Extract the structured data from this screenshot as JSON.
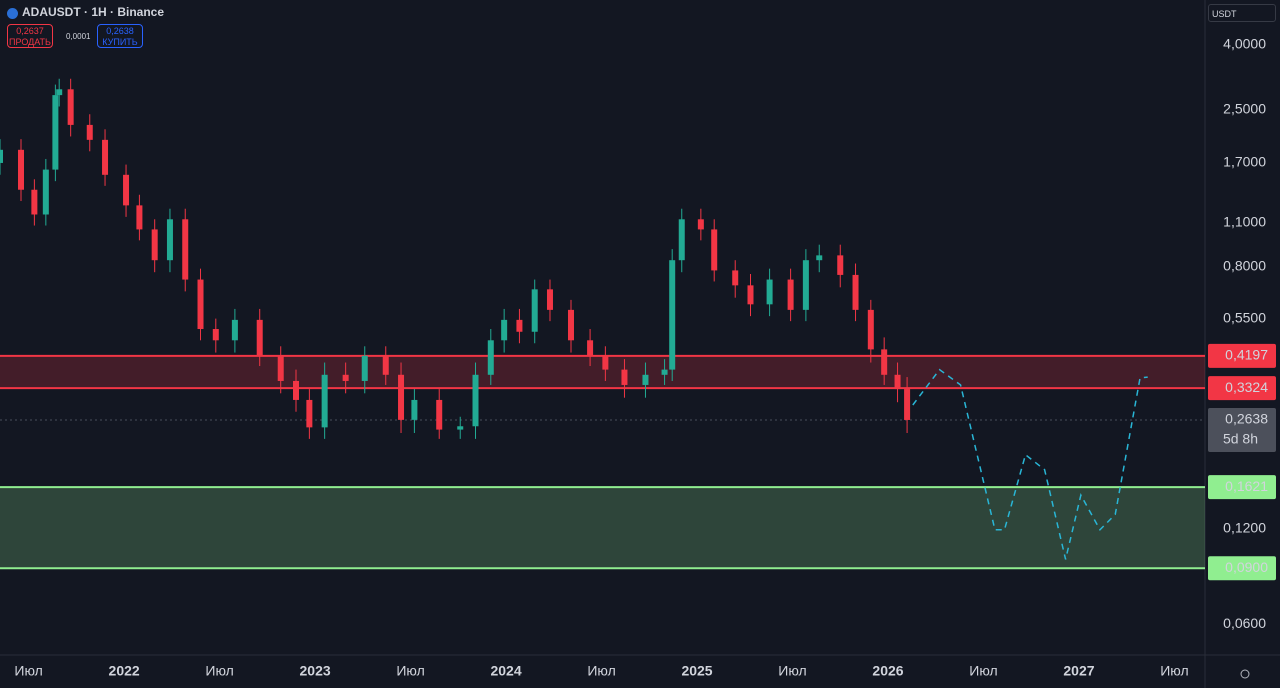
{
  "header": {
    "symbol": "ADAUSDT · 1H · Binance",
    "sell_price": "0,2637",
    "sell_label": "ПРОДАТЬ",
    "spread": "0,0001",
    "buy_price": "0,2638",
    "buy_label": "КУПИТЬ",
    "currency": "USDT"
  },
  "chart_data": {
    "type": "candlestick",
    "log_scale": true,
    "grid": false,
    "up_color": "#22ab94",
    "down_color": "#f23645",
    "x": [
      2021.35,
      2021.46,
      2021.53,
      2021.59,
      2021.64,
      2021.66,
      2021.72,
      2021.82,
      2021.9,
      2022.01,
      2022.08,
      2022.16,
      2022.24,
      2022.32,
      2022.4,
      2022.48,
      2022.58,
      2022.71,
      2022.82,
      2022.9,
      2022.97,
      2023.05,
      2023.16,
      2023.26,
      2023.37,
      2023.45,
      2023.52,
      2023.65,
      2023.76,
      2023.84,
      2023.92,
      2023.99,
      2024.07,
      2024.15,
      2024.23,
      2024.34,
      2024.44,
      2024.52,
      2024.62,
      2024.73,
      2024.83,
      2024.87,
      2024.92,
      2025.02,
      2025.09,
      2025.2,
      2025.28,
      2025.38,
      2025.49,
      2025.57,
      2025.64,
      2025.75,
      2025.83,
      2025.91,
      2025.98,
      2026.05,
      2026.1
    ],
    "open": [
      1.7,
      1.87,
      1.4,
      1.17,
      1.62,
      2.78,
      2.9,
      2.24,
      2.01,
      1.56,
      1.25,
      1.05,
      0.84,
      1.13,
      0.73,
      0.51,
      0.47,
      0.545,
      0.42,
      0.35,
      0.305,
      0.25,
      0.366,
      0.35,
      0.42,
      0.366,
      0.264,
      0.305,
      0.246,
      0.252,
      0.366,
      0.47,
      0.545,
      0.5,
      0.68,
      0.586,
      0.47,
      0.42,
      0.38,
      0.34,
      0.366,
      0.38,
      0.84,
      1.13,
      1.05,
      0.78,
      0.7,
      0.61,
      0.73,
      0.586,
      0.84,
      0.87,
      0.755,
      0.586,
      0.44,
      0.366,
      0.33
    ],
    "high": [
      2.02,
      2.02,
      1.51,
      1.75,
      3.0,
      3.13,
      3.13,
      2.42,
      2.17,
      1.68,
      1.35,
      1.13,
      1.22,
      1.22,
      0.79,
      0.55,
      0.59,
      0.59,
      0.45,
      0.38,
      0.33,
      0.4,
      0.4,
      0.45,
      0.45,
      0.4,
      0.33,
      0.33,
      0.27,
      0.4,
      0.51,
      0.59,
      0.59,
      0.73,
      0.73,
      0.63,
      0.51,
      0.45,
      0.41,
      0.4,
      0.41,
      0.91,
      1.22,
      1.22,
      1.13,
      0.84,
      0.76,
      0.79,
      0.79,
      0.91,
      0.94,
      0.94,
      0.82,
      0.63,
      0.48,
      0.4,
      0.36
    ],
    "low": [
      1.56,
      1.29,
      1.08,
      1.08,
      1.49,
      2.56,
      2.06,
      1.85,
      1.44,
      1.15,
      0.97,
      0.77,
      0.77,
      0.67,
      0.47,
      0.43,
      0.43,
      0.39,
      0.32,
      0.28,
      0.23,
      0.23,
      0.32,
      0.32,
      0.34,
      0.24,
      0.24,
      0.23,
      0.23,
      0.23,
      0.34,
      0.43,
      0.46,
      0.46,
      0.54,
      0.43,
      0.39,
      0.35,
      0.31,
      0.31,
      0.34,
      0.35,
      0.77,
      0.97,
      0.72,
      0.64,
      0.56,
      0.56,
      0.54,
      0.54,
      0.77,
      0.69,
      0.54,
      0.4,
      0.34,
      0.3,
      0.24
    ],
    "close": [
      1.87,
      1.4,
      1.17,
      1.62,
      2.78,
      2.9,
      2.24,
      2.01,
      1.56,
      1.25,
      1.05,
      0.84,
      1.13,
      0.73,
      0.51,
      0.47,
      0.545,
      0.42,
      0.35,
      0.305,
      0.25,
      0.366,
      0.35,
      0.42,
      0.366,
      0.264,
      0.305,
      0.246,
      0.252,
      0.366,
      0.47,
      0.545,
      0.5,
      0.68,
      0.586,
      0.47,
      0.42,
      0.38,
      0.34,
      0.366,
      0.38,
      0.84,
      1.13,
      1.05,
      0.78,
      0.7,
      0.61,
      0.73,
      0.586,
      0.84,
      0.87,
      0.755,
      0.586,
      0.44,
      0.366,
      0.33,
      0.2638
    ],
    "xlim": [
      2021.35,
      2027.66
    ],
    "ylim": [
      0.048,
      5.54
    ],
    "xticks": [
      {
        "value": 2021.5,
        "label": "Июл"
      },
      2022,
      {
        "value": 2022.5,
        "label": "Июл"
      },
      2023,
      {
        "value": 2023.5,
        "label": "Июл"
      },
      2024,
      {
        "value": 2024.5,
        "label": "Июл"
      },
      2025,
      {
        "value": 2025.5,
        "label": "Июл"
      },
      2026,
      {
        "value": 2026.5,
        "label": "Июл"
      },
      2027,
      {
        "value": 2027.5,
        "label": "Июл"
      }
    ],
    "yticks": [
      {
        "value": 4,
        "label": "4,0000"
      },
      {
        "value": 2.5,
        "label": "2,5000"
      },
      {
        "value": 1.7,
        "label": "1,7000"
      },
      {
        "value": 1.1,
        "label": "1,1000"
      },
      {
        "value": 0.8,
        "label": "0,8000"
      },
      {
        "value": 0.55,
        "label": "0,5500"
      },
      {
        "value": 0.12,
        "label": "0,1200"
      },
      {
        "value": 0.06,
        "label": "0,0600"
      }
    ],
    "resistance_zone": {
      "top": {
        "value": 0.4197,
        "label": "0,4197"
      },
      "bottom": {
        "value": 0.3324,
        "label": "0,3324"
      },
      "color": "#f23645"
    },
    "support_zone": {
      "top": {
        "value": 0.1621,
        "label": "0,1621"
      },
      "bottom": {
        "value": 0.09,
        "label": "0,0900"
      },
      "color": "#90ee90"
    },
    "current_price": {
      "value": 0.2638,
      "label": "0,2638"
    },
    "countdown": "5d 8h",
    "projection": {
      "color": "#29b6d6",
      "x": [
        2026.13,
        2026.27,
        2026.38,
        2026.56,
        2026.61,
        2026.72,
        2026.82,
        2026.93,
        2027.01,
        2027.11,
        2027.19,
        2027.32,
        2027.36
      ],
      "values": [
        0.294,
        0.38,
        0.34,
        0.119,
        0.119,
        0.205,
        0.184,
        0.096,
        0.153,
        0.119,
        0.133,
        0.358,
        0.36
      ]
    }
  }
}
